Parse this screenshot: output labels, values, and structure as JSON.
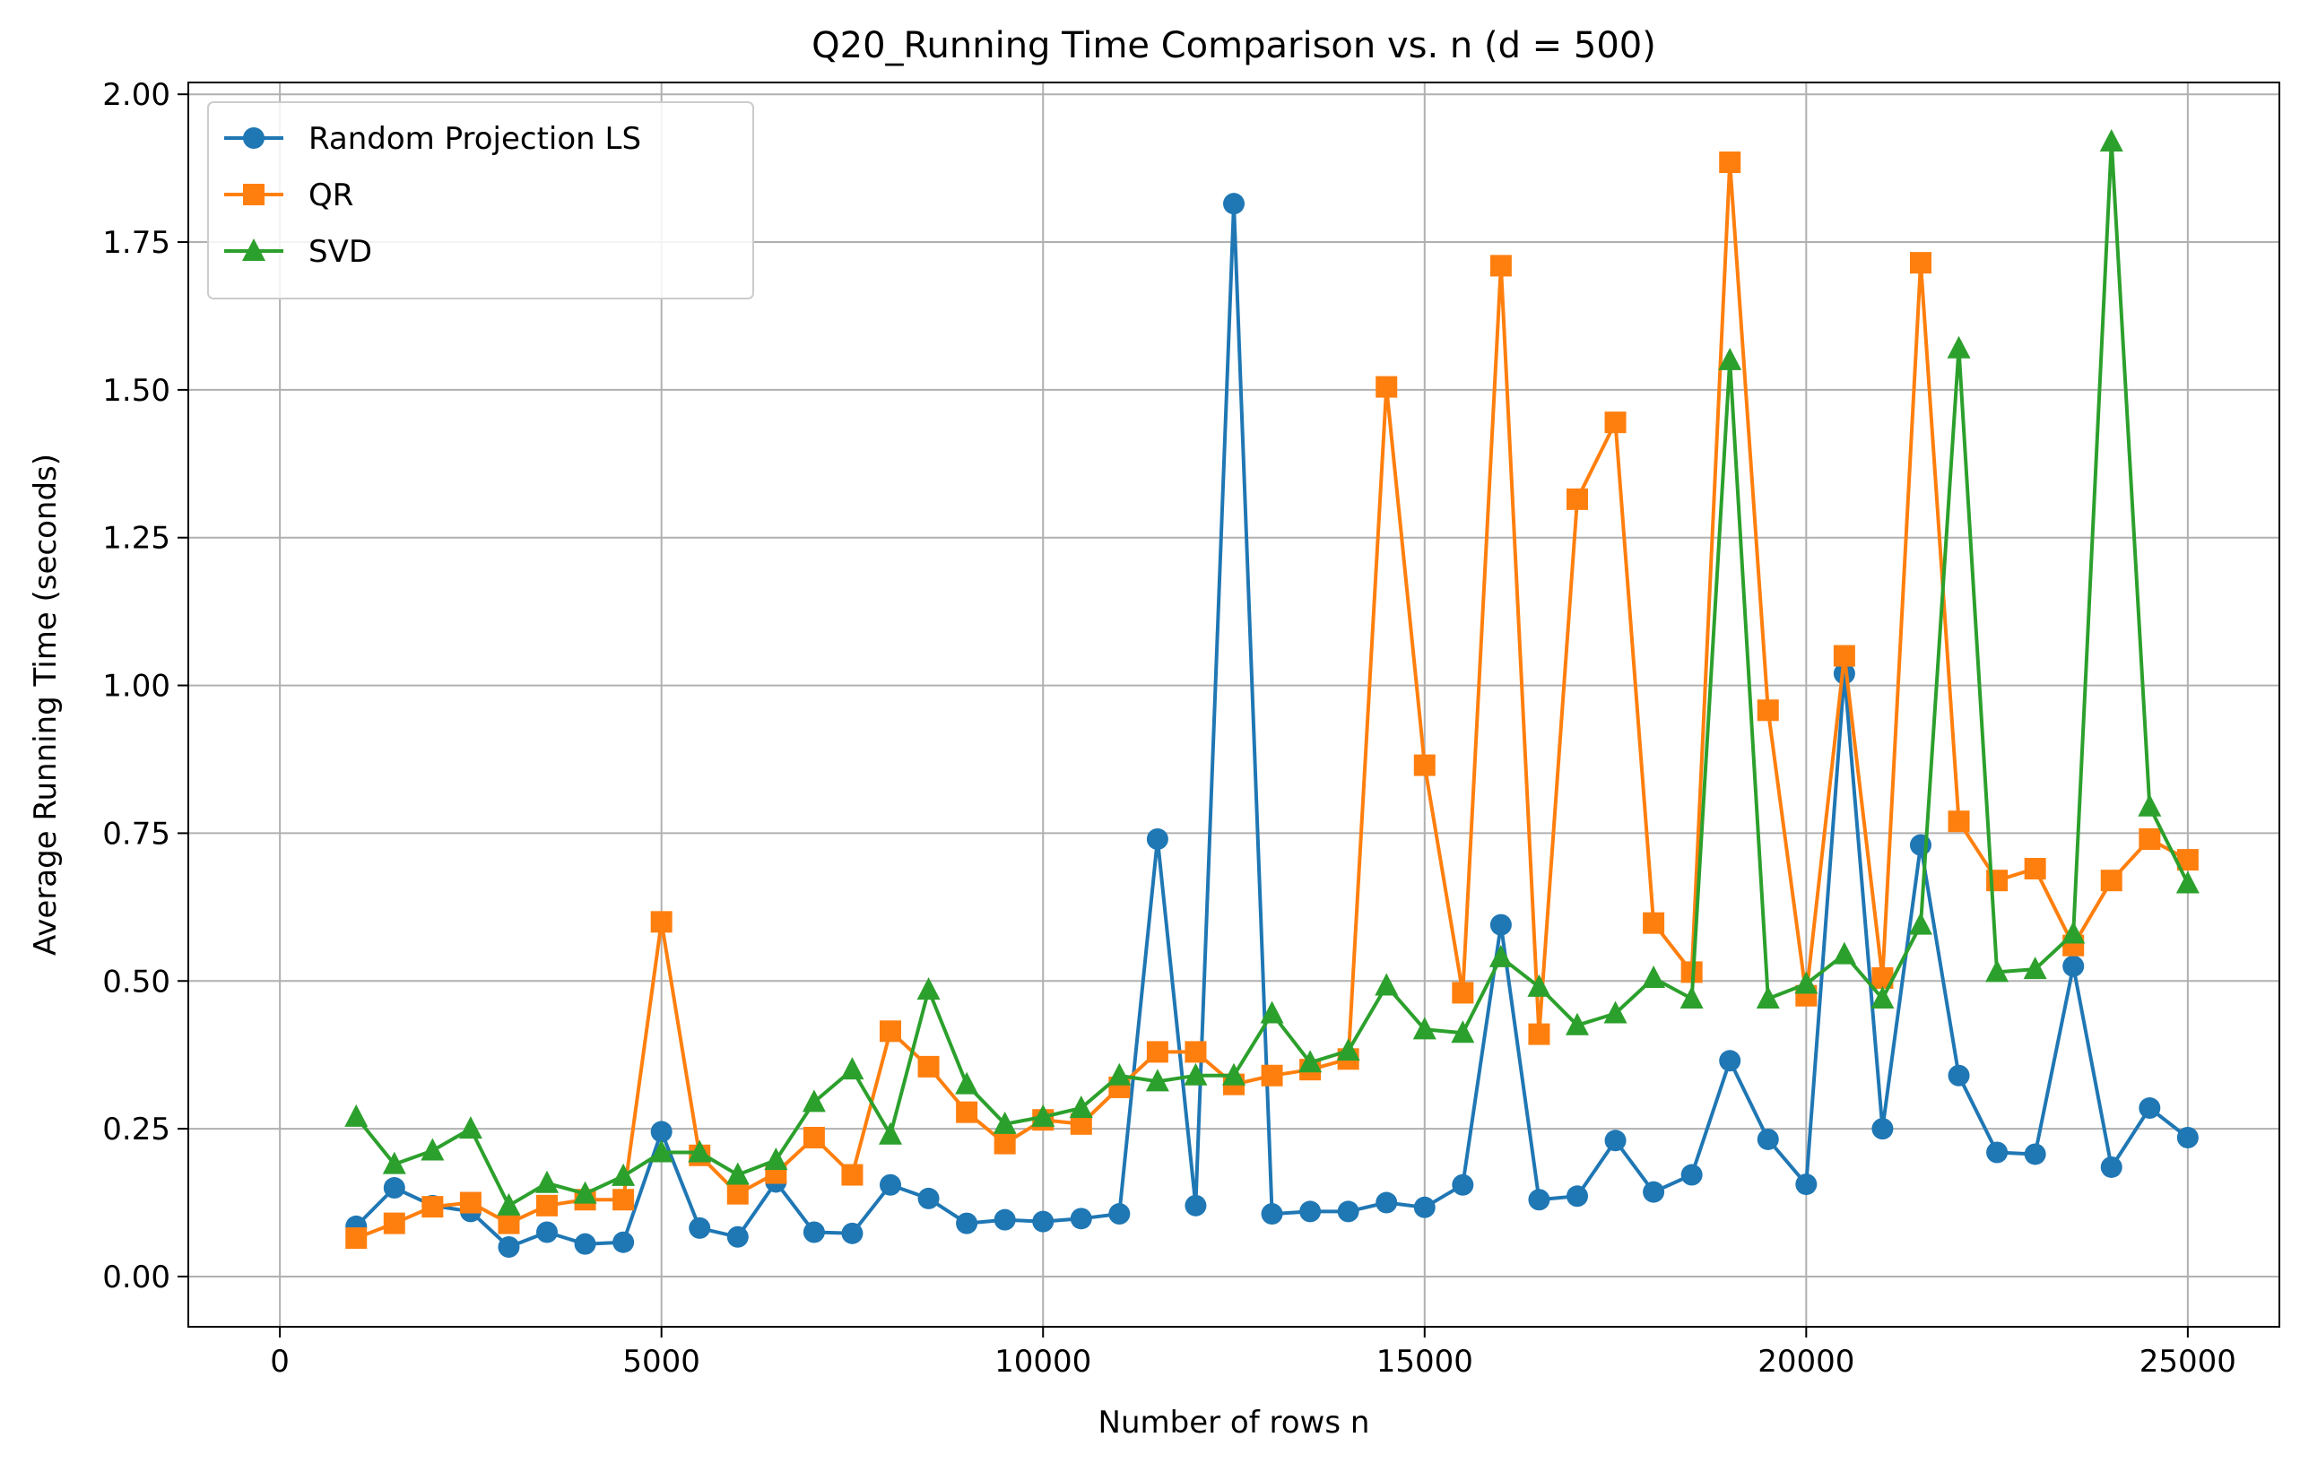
{
  "chart_data": {
    "type": "line",
    "title": "Q20_Running Time Comparison vs. n (d = 500)",
    "xlabel": "Number of rows n",
    "ylabel": "Average Running Time (seconds)",
    "xlim": [
      -1200,
      26200
    ],
    "ylim": [
      -0.085,
      2.02
    ],
    "x_ticks": [
      0,
      5000,
      10000,
      15000,
      20000,
      25000
    ],
    "y_ticks": [
      0.0,
      0.25,
      0.5,
      0.75,
      1.0,
      1.25,
      1.5,
      1.75,
      2.0
    ],
    "x_tick_labels": [
      "0",
      "5000",
      "10000",
      "15000",
      "20000",
      "25000"
    ],
    "y_tick_labels": [
      "0.00",
      "0.25",
      "0.50",
      "0.75",
      "1.00",
      "1.25",
      "1.50",
      "1.75",
      "2.00"
    ],
    "grid": true,
    "legend_position": "top-left",
    "x": [
      1000,
      1500,
      2000,
      2500,
      3000,
      3500,
      4000,
      4500,
      5000,
      5500,
      6000,
      6500,
      7000,
      7500,
      8000,
      8500,
      9000,
      9500,
      10000,
      10500,
      11000,
      11500,
      12000,
      12500,
      13000,
      13500,
      14000,
      14500,
      15000,
      15500,
      16000,
      16500,
      17000,
      17500,
      18000,
      18500,
      19000,
      19500,
      20000,
      20500,
      21000,
      21500,
      22000,
      22500,
      23000,
      23500,
      24000,
      24500,
      25000
    ],
    "series": [
      {
        "name": "Random Projection LS",
        "color": "#1f77b4",
        "marker": "circle",
        "values": [
          0.085,
          0.15,
          0.12,
          0.11,
          0.05,
          0.075,
          0.055,
          0.058,
          0.245,
          0.082,
          0.067,
          0.16,
          0.075,
          0.073,
          0.155,
          0.132,
          0.09,
          0.096,
          0.093,
          0.098,
          0.106,
          0.74,
          0.12,
          1.815,
          0.106,
          0.11,
          0.11,
          0.125,
          0.117,
          0.155,
          0.595,
          0.13,
          0.136,
          0.23,
          0.143,
          0.172,
          0.365,
          0.232,
          0.156,
          1.02,
          0.25,
          0.73,
          0.34,
          0.21,
          0.207,
          0.525,
          0.185,
          0.285,
          0.235
        ]
      },
      {
        "name": "QR",
        "color": "#ff7f0e",
        "marker": "square",
        "values": [
          0.065,
          0.09,
          0.118,
          0.125,
          0.09,
          0.12,
          0.13,
          0.13,
          0.6,
          0.205,
          0.14,
          0.175,
          0.235,
          0.172,
          0.415,
          0.355,
          0.278,
          0.225,
          0.265,
          0.258,
          0.32,
          0.38,
          0.38,
          0.325,
          0.34,
          0.35,
          0.368,
          1.505,
          0.865,
          0.48,
          1.71,
          0.41,
          1.315,
          1.445,
          0.598,
          0.515,
          1.885,
          0.958,
          0.475,
          1.05,
          0.505,
          1.715,
          0.77,
          0.67,
          0.69,
          0.56,
          0.67,
          0.74,
          0.705
        ]
      },
      {
        "name": "SVD",
        "color": "#2ca02c",
        "marker": "triangle",
        "values": [
          0.27,
          0.19,
          0.213,
          0.25,
          0.12,
          0.158,
          0.14,
          0.17,
          0.21,
          0.21,
          0.172,
          0.197,
          0.295,
          0.35,
          0.24,
          0.485,
          0.325,
          0.258,
          0.27,
          0.285,
          0.34,
          0.33,
          0.34,
          0.34,
          0.445,
          0.362,
          0.382,
          0.492,
          0.418,
          0.412,
          0.54,
          0.49,
          0.425,
          0.445,
          0.505,
          0.47,
          1.55,
          0.47,
          0.495,
          0.545,
          0.47,
          0.595,
          1.57,
          0.515,
          0.52,
          0.58,
          1.92,
          0.795,
          0.665
        ]
      }
    ]
  }
}
